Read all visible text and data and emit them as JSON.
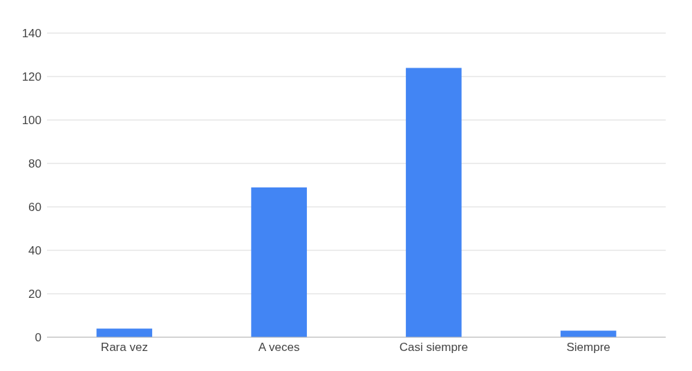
{
  "chart_data": {
    "type": "bar",
    "categories": [
      "Rara vez",
      "A veces",
      "Casi siempre",
      "Siempre"
    ],
    "values": [
      4,
      69,
      124,
      3
    ],
    "color": "#4285f4",
    "ylim": [
      0,
      140
    ],
    "yticks": [
      0,
      20,
      40,
      60,
      80,
      100,
      120,
      140
    ],
    "grid": "y",
    "legend": false
  }
}
